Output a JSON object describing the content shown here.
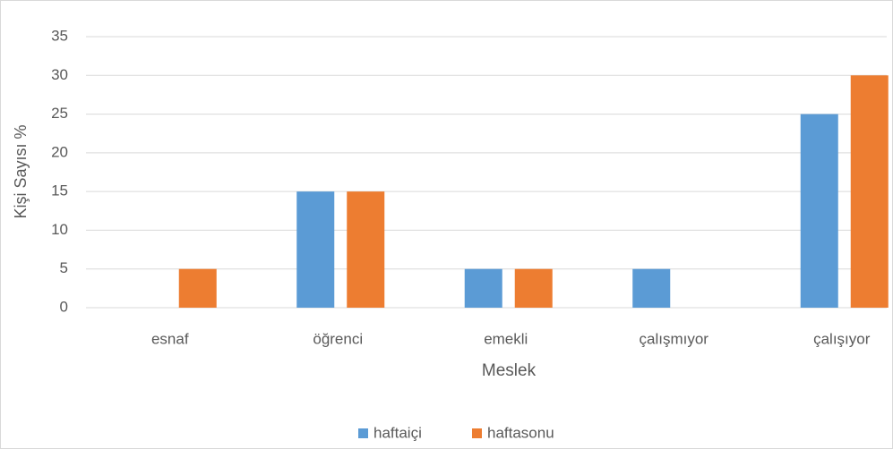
{
  "chart_data": {
    "type": "bar",
    "categories": [
      "esnaf",
      "öğrenci",
      "emekli",
      "çalışmıyor",
      "çalışıyor"
    ],
    "series": [
      {
        "name": "haftaiçi",
        "color": "#5b9bd5",
        "values": [
          0,
          15,
          5,
          5,
          25
        ]
      },
      {
        "name": "haftasonu",
        "color": "#ed7d31",
        "values": [
          5,
          15,
          5,
          0,
          30
        ]
      }
    ],
    "ylim": [
      0,
      35
    ],
    "yticks": [
      0,
      5,
      10,
      15,
      20,
      25,
      30,
      35
    ],
    "grid": true,
    "xlabel": "Meslek",
    "ylabel": "Kişi Sayısı %",
    "legend": "bottom"
  }
}
